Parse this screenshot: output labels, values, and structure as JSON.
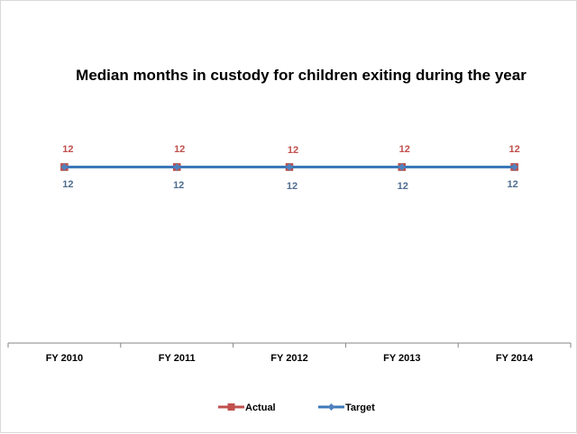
{
  "chart_data": {
    "type": "line",
    "title": "Median months in custody for children exiting during the year",
    "categories": [
      "FY 2010",
      "FY 2011",
      "FY 2012",
      "FY 2013",
      "FY 2014"
    ],
    "xlabel": "",
    "ylabel": "",
    "grid": false,
    "legend_position": "bottom",
    "series": [
      {
        "name": "Actual",
        "values": [
          12,
          12,
          12,
          12,
          12
        ],
        "color": "#C0504D",
        "marker": "square",
        "label_position": "above",
        "data_labels": [
          "12",
          "12",
          "12",
          "12",
          "12"
        ]
      },
      {
        "name": "Target",
        "values": [
          12,
          12,
          12,
          12,
          12
        ],
        "color": "#4F81BD",
        "marker": "diamond",
        "label_position": "below",
        "data_labels": [
          "12",
          "12",
          "12",
          "12",
          "12"
        ]
      }
    ],
    "line_color_drawn": "#3B78B8"
  }
}
